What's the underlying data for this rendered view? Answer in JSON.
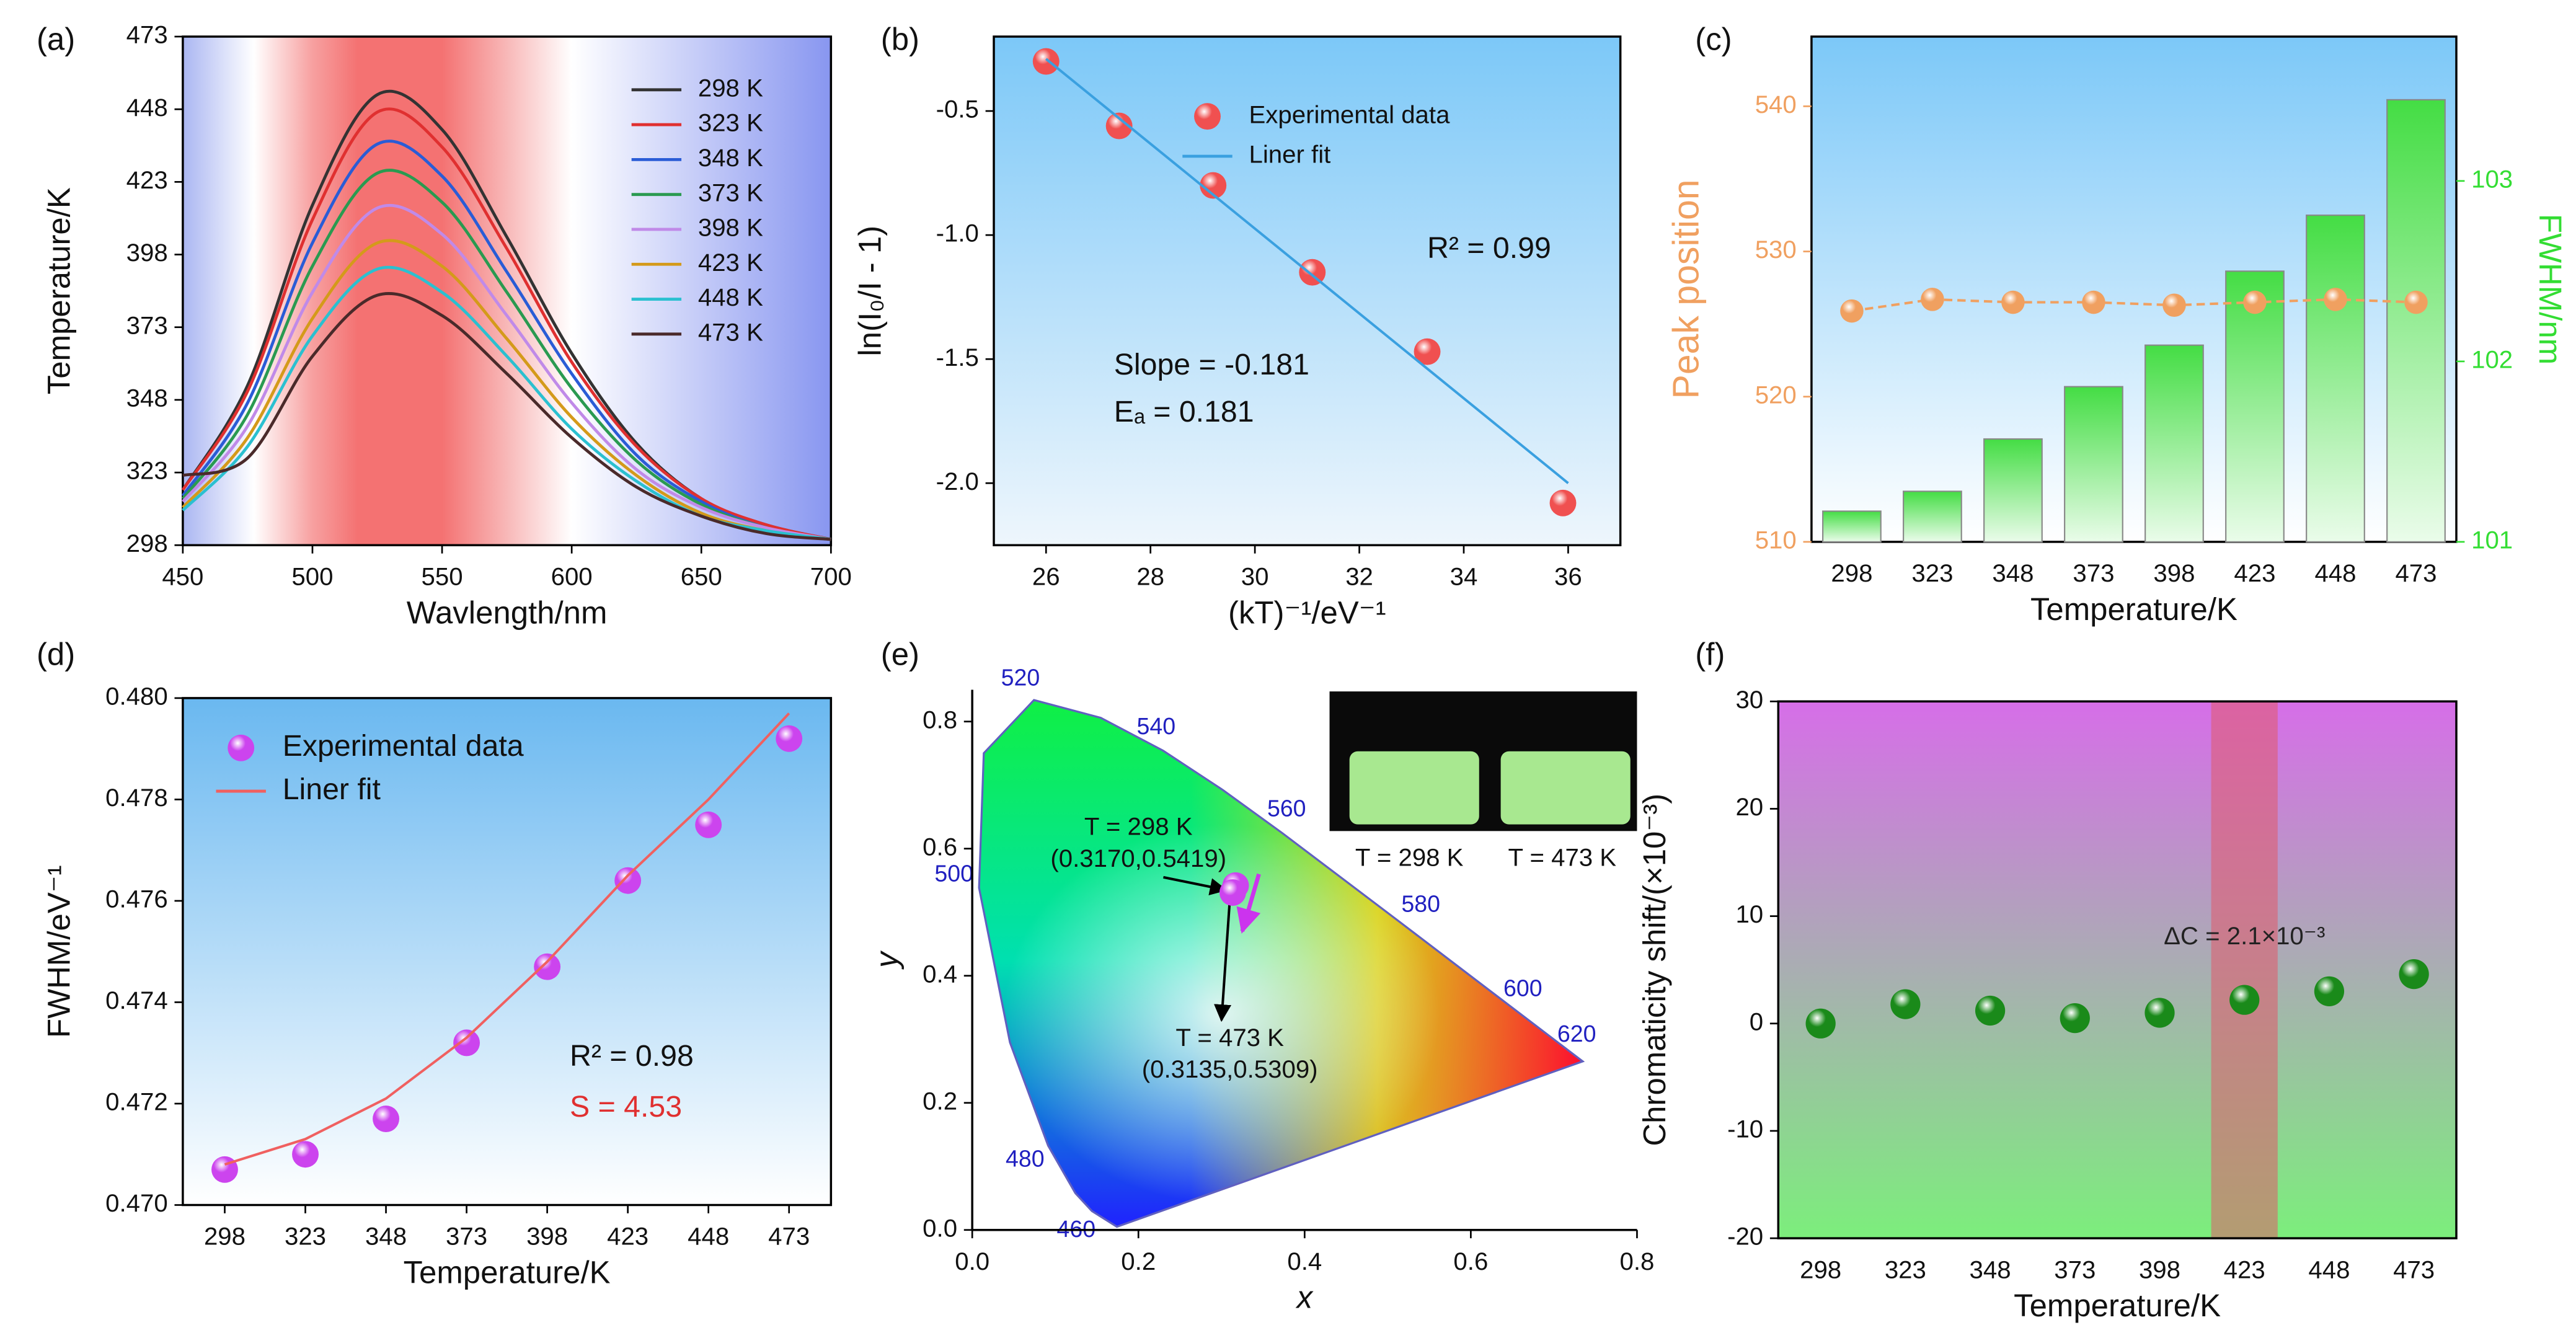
{
  "chart_data": [
    {
      "type": "line",
      "panel": "(a)",
      "xlabel": "Wavlength/nm",
      "ylabel": "Temperature/K",
      "x": [
        450,
        475,
        500,
        525,
        550,
        575,
        600,
        625,
        650,
        675,
        700
      ],
      "series": [
        {
          "name": "298 K",
          "color": "#333333",
          "values": [
            317,
            353,
            415,
            453,
            441,
            404,
            364,
            333,
            314,
            305,
            300
          ]
        },
        {
          "name": "323 K",
          "color": "#e03030",
          "values": [
            317,
            351,
            410,
            447,
            435,
            400,
            361,
            332,
            314,
            305,
            300
          ]
        },
        {
          "name": "348 K",
          "color": "#2a5cd6",
          "values": [
            315,
            347,
            402,
            436,
            425,
            392,
            357,
            329,
            313,
            304,
            300
          ]
        },
        {
          "name": "373 K",
          "color": "#2a9a50",
          "values": [
            314,
            343,
            394,
            426,
            416,
            385,
            352,
            327,
            312,
            304,
            300
          ]
        },
        {
          "name": "398 K",
          "color": "#c08ae8",
          "values": [
            313,
            339,
            385,
            414,
            405,
            377,
            347,
            324,
            311,
            304,
            300
          ]
        },
        {
          "name": "423 K",
          "color": "#d49a1a",
          "values": [
            311,
            335,
            376,
            402,
            394,
            369,
            342,
            322,
            309,
            303,
            300
          ]
        },
        {
          "name": "448 K",
          "color": "#2bc0d0",
          "values": [
            310,
            332,
            370,
            393,
            385,
            363,
            338,
            320,
            308,
            303,
            300
          ]
        },
        {
          "name": "473 K",
          "color": "#4a2a2a",
          "values": [
            322,
            328,
            363,
            384,
            377,
            357,
            335,
            318,
            308,
            302,
            300
          ]
        }
      ],
      "xlim": [
        450,
        700
      ],
      "xticks": [
        450,
        500,
        550,
        600,
        650,
        700
      ],
      "ylim": [
        298,
        473
      ],
      "yticks": [
        298,
        323,
        348,
        373,
        398,
        423,
        448,
        473
      ],
      "legend": "upper right"
    },
    {
      "type": "scatter",
      "panel": "(b)",
      "xlabel": "(kT)⁻¹/eV⁻¹",
      "ylabel": "ln(I₀/I - 1)",
      "series": [
        {
          "name": "Experimental data",
          "color": "#f05050",
          "x": [
            26,
            27.4,
            29.2,
            31.1,
            33.3,
            35.9
          ],
          "values": [
            -0.3,
            -0.56,
            -0.8,
            -1.15,
            -1.47,
            -2.08
          ]
        },
        {
          "name": "Liner fit",
          "type": "line",
          "color": "#3aa0e0",
          "x": [
            26,
            36
          ],
          "values": [
            -0.29,
            -2.0
          ]
        }
      ],
      "xlim": [
        25,
        37
      ],
      "xticks": [
        26,
        28,
        30,
        32,
        34,
        36
      ],
      "ylim": [
        -2.25,
        -0.2
      ],
      "yticks": [
        -0.5,
        {
          "value": -1,
          "label": "-1.0"
        },
        -1.5,
        {
          "value": -2,
          "label": "-2.0"
        }
      ],
      "annotations": [
        "R² = 0.99",
        "Slope = -0.181",
        "Eₐ = 0.181"
      ],
      "legend": "upper center"
    },
    {
      "type": "bar",
      "panel": "(c)",
      "xlabel": "Temperature/K",
      "ylabel": "Peak position",
      "y2label": "FWHM/nm",
      "ylabel_color": "#f0a060",
      "y2label_color": "#33dd33",
      "categories": [
        "298",
        "323",
        "348",
        "373",
        "398",
        "423",
        "448",
        "473"
      ],
      "series": [
        {
          "color": "#55e055",
          "axis": "y2",
          "values": [
            101.17,
            101.28,
            101.57,
            101.86,
            102.09,
            102.5,
            102.81,
            103.45
          ]
        },
        {
          "type": "line",
          "marker": true,
          "color": "#f0a060",
          "values": [
            525.9,
            526.7,
            526.5,
            526.5,
            526.3,
            526.5,
            526.7,
            526.5
          ]
        }
      ],
      "ylim": [
        510,
        544.8
      ],
      "yticks": [
        510,
        520,
        530,
        540
      ],
      "y2lim": [
        101,
        103.8
      ],
      "y2ticks": [
        101,
        102,
        103
      ]
    },
    {
      "type": "scatter",
      "panel": "(d)",
      "xlabel": "Temperature/K",
      "ylabel": "FWHM/eV⁻¹",
      "series": [
        {
          "name": "Experimental data",
          "color": "#cc44ee",
          "x": [
            298,
            323,
            348,
            373,
            398,
            423,
            448,
            473
          ],
          "values": [
            0.4707,
            0.471,
            0.4717,
            0.4732,
            0.4747,
            0.4764,
            0.4775,
            0.4792
          ]
        },
        {
          "name": "Liner fit",
          "type": "line",
          "color": "#f06060",
          "x": [
            298,
            323,
            348,
            373,
            398,
            423,
            448,
            473
          ],
          "values": [
            0.4708,
            0.4713,
            0.4721,
            0.4733,
            0.4748,
            0.4765,
            0.478,
            0.4797
          ]
        }
      ],
      "xlim": [
        285,
        486
      ],
      "xticks": [
        298,
        323,
        348,
        373,
        398,
        423,
        448,
        473
      ],
      "ylim": [
        0.47,
        0.48
      ],
      "yticks": [
        {
          "value": 0.47,
          "label": "0.470"
        },
        0.472,
        0.474,
        0.476,
        0.478,
        {
          "value": 0.48,
          "label": "0.480"
        }
      ],
      "annotations": [
        "R² = 0.98",
        "S = 4.53"
      ],
      "legend": "upper left"
    },
    {
      "type": "scatter",
      "panel": "(e)",
      "xlabel": "x",
      "ylabel": "y",
      "series": [
        {
          "color": "#cc44ee",
          "x": [
            0.317,
            0.3135
          ],
          "values": [
            0.5419,
            0.5309
          ]
        }
      ],
      "xlim": [
        0,
        0.8
      ],
      "xticks": [
        {
          "value": 0,
          "label": "0.0"
        },
        0.2,
        0.4,
        0.6,
        0.8
      ],
      "ylim": [
        0,
        0.85
      ],
      "yticks": [
        {
          "value": 0,
          "label": "0.0"
        },
        0.2,
        0.4,
        0.6,
        0.8
      ],
      "locus": {
        "labels": [
          null,
          460,
          null,
          480,
          null,
          500,
          null,
          520,
          null,
          540,
          null,
          560,
          580,
          600,
          620,
          null
        ],
        "x": [
          0.1741,
          0.144,
          0.1241,
          0.0913,
          0.0454,
          0.0082,
          0.0139,
          0.0743,
          0.1547,
          0.2296,
          0.3016,
          0.3731,
          0.5125,
          0.627,
          0.6915,
          0.7347
        ],
        "y": [
          0.005,
          0.0297,
          0.0578,
          0.1327,
          0.295,
          0.5384,
          0.7502,
          0.8338,
          0.8059,
          0.7543,
          0.6923,
          0.6245,
          0.4866,
          0.3725,
          0.3083,
          0.2653
        ]
      },
      "annotations": [
        "T = 298 K",
        "(0.3170,0.5419)",
        "T = 473 K",
        "(0.3135,0.5309)"
      ],
      "inset_labels": [
        "T = 298 K",
        "T = 473 K"
      ]
    },
    {
      "type": "scatter",
      "panel": "(f)",
      "xlabel": "Temperature/K",
      "ylabel": "Chromaticity shift/(×10⁻³)",
      "categories": [
        "298",
        "323",
        "348",
        "373",
        "398",
        "423",
        "448",
        "473"
      ],
      "series": [
        {
          "color": "#1a8a1a",
          "values": [
            0,
            1.8,
            1.2,
            0.5,
            1.0,
            2.2,
            3.0,
            4.6
          ]
        }
      ],
      "ylim": [
        -20,
        30
      ],
      "yticks": [
        -20,
        -10,
        0,
        10,
        20,
        30
      ],
      "annotations": [
        "ΔC = 2.1×10⁻³"
      ]
    }
  ]
}
